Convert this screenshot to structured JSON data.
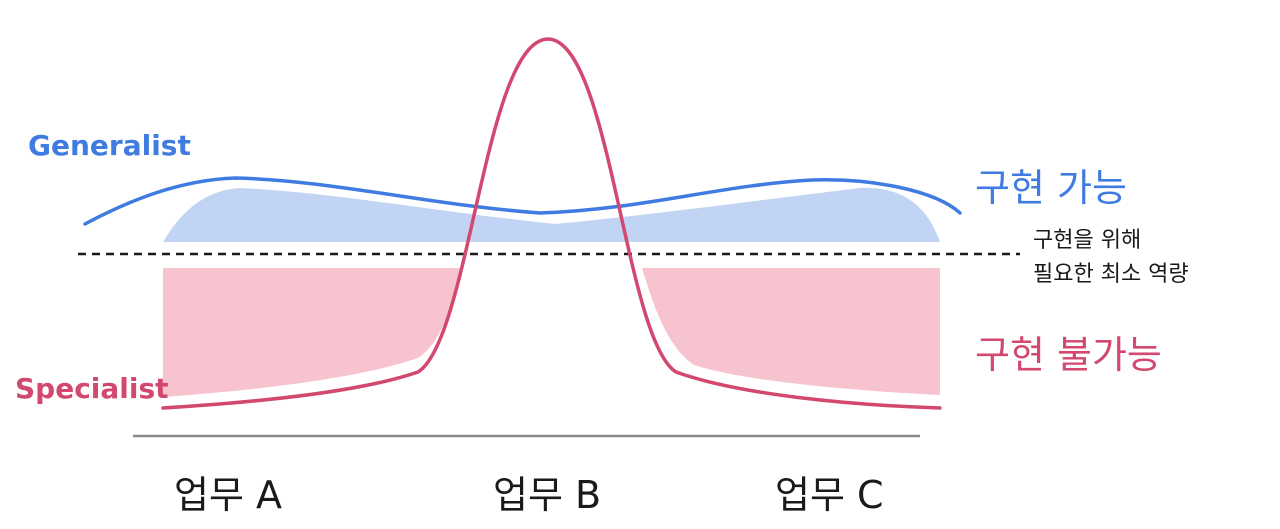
{
  "colors": {
    "generalist": "#3f7be0",
    "generalist_fill": "#c2d4f4",
    "specialist": "#d2486e",
    "specialist_fill": "#f6c3ce",
    "threshold": "#1a1a1a",
    "baseline": "#8a8a8a"
  },
  "series": {
    "generalist": "Generalist",
    "specialist": "Specialist"
  },
  "zones": {
    "possible": "구현 가능",
    "impossible": "구현 불가능"
  },
  "threshold": {
    "line1": "구현을 위해",
    "line2": "필요한 최소 역량"
  },
  "tasks": [
    "업무 A",
    "업무 B",
    "업무 C"
  ]
}
